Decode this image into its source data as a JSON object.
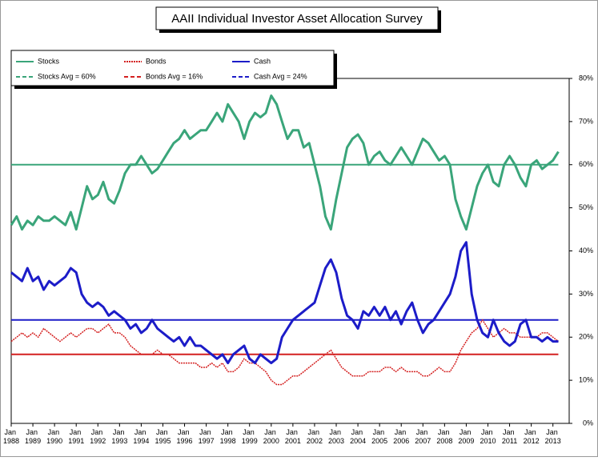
{
  "chart_data": {
    "type": "line",
    "title": "AAII Individual Investor Asset Allocation Survey",
    "x": [
      1988,
      1988.25,
      1988.5,
      1988.75,
      1989,
      1989.25,
      1989.5,
      1989.75,
      1990,
      1990.25,
      1990.5,
      1990.75,
      1991,
      1991.25,
      1991.5,
      1991.75,
      1992,
      1992.25,
      1992.5,
      1992.75,
      1993,
      1993.25,
      1993.5,
      1993.75,
      1994,
      1994.25,
      1994.5,
      1994.75,
      1995,
      1995.25,
      1995.5,
      1995.75,
      1996,
      1996.25,
      1996.5,
      1996.75,
      1997,
      1997.25,
      1997.5,
      1997.75,
      1998,
      1998.25,
      1998.5,
      1998.75,
      1999,
      1999.25,
      1999.5,
      1999.75,
      2000,
      2000.25,
      2000.5,
      2000.75,
      2001,
      2001.25,
      2001.5,
      2001.75,
      2002,
      2002.25,
      2002.5,
      2002.75,
      2003,
      2003.25,
      2003.5,
      2003.75,
      2004,
      2004.25,
      2004.5,
      2004.75,
      2005,
      2005.25,
      2005.5,
      2005.75,
      2006,
      2006.25,
      2006.5,
      2006.75,
      2007,
      2007.25,
      2007.5,
      2007.75,
      2008,
      2008.25,
      2008.5,
      2008.75,
      2009,
      2009.25,
      2009.5,
      2009.75,
      2010,
      2010.25,
      2010.5,
      2010.75,
      2011,
      2011.25,
      2011.5,
      2011.75,
      2012,
      2012.25,
      2012.5,
      2012.75,
      2013,
      2013.25
    ],
    "series": [
      {
        "name": "Stocks",
        "color": "#3aa57a",
        "dash": false,
        "values": [
          46,
          48,
          45,
          47,
          46,
          48,
          47,
          47,
          48,
          47,
          46,
          49,
          45,
          50,
          55,
          52,
          53,
          56,
          52,
          51,
          54,
          58,
          60,
          60,
          62,
          60,
          58,
          59,
          61,
          63,
          65,
          66,
          68,
          66,
          67,
          68,
          68,
          70,
          72,
          70,
          74,
          72,
          70,
          66,
          70,
          72,
          71,
          72,
          76,
          74,
          70,
          66,
          68,
          68,
          64,
          65,
          60,
          55,
          48,
          45,
          52,
          58,
          64,
          66,
          67,
          65,
          60,
          62,
          63,
          61,
          60,
          62,
          64,
          62,
          60,
          63,
          66,
          65,
          63,
          61,
          62,
          60,
          52,
          48,
          45,
          50,
          55,
          58,
          60,
          56,
          55,
          60,
          62,
          60,
          57,
          55,
          60,
          61,
          59,
          60,
          61,
          63
        ]
      },
      {
        "name": "Bonds",
        "color": "#d42020",
        "dash": true,
        "values": [
          19,
          20,
          21,
          20,
          21,
          20,
          22,
          21,
          20,
          19,
          20,
          21,
          20,
          21,
          22,
          22,
          21,
          22,
          23,
          21,
          21,
          20,
          18,
          17,
          16,
          16,
          16,
          17,
          16,
          16,
          15,
          14,
          14,
          14,
          14,
          13,
          13,
          14,
          13,
          14,
          12,
          12,
          13,
          15,
          14,
          14,
          13,
          12,
          10,
          9,
          9,
          10,
          11,
          11,
          12,
          13,
          14,
          15,
          16,
          17,
          15,
          13,
          12,
          11,
          11,
          11,
          12,
          12,
          12,
          13,
          13,
          12,
          13,
          12,
          12,
          12,
          11,
          11,
          12,
          13,
          12,
          12,
          14,
          17,
          19,
          21,
          22,
          24,
          22,
          20,
          21,
          22,
          21,
          21,
          20,
          20,
          20,
          20,
          21,
          21,
          20,
          19
        ]
      },
      {
        "name": "Cash",
        "color": "#1c1cc8",
        "dash": false,
        "values": [
          35,
          34,
          33,
          36,
          33,
          34,
          31,
          33,
          32,
          33,
          34,
          36,
          35,
          30,
          28,
          27,
          28,
          27,
          25,
          26,
          25,
          24,
          22,
          23,
          21,
          22,
          24,
          22,
          21,
          20,
          19,
          20,
          18,
          20,
          18,
          18,
          17,
          16,
          15,
          16,
          14,
          16,
          17,
          18,
          15,
          14,
          16,
          15,
          14,
          15,
          20,
          22,
          24,
          25,
          26,
          27,
          28,
          32,
          36,
          38,
          35,
          29,
          25,
          24,
          22,
          26,
          25,
          27,
          25,
          27,
          24,
          26,
          23,
          26,
          28,
          24,
          21,
          23,
          24,
          26,
          28,
          30,
          34,
          40,
          42,
          30,
          24,
          21,
          20,
          24,
          21,
          19,
          18,
          19,
          23,
          24,
          20,
          20,
          19,
          20,
          19,
          19
        ]
      }
    ],
    "averages": [
      {
        "name": "Stocks Avg = 60%",
        "value": 60,
        "color": "#3aa57a"
      },
      {
        "name": "Bonds Avg = 16%",
        "value": 16,
        "color": "#d42020"
      },
      {
        "name": "Cash Avg = 24%",
        "value": 24,
        "color": "#1c1cc8"
      }
    ],
    "xlim": [
      1988,
      2013.75
    ],
    "xticks": [
      {
        "value": 1988,
        "label": "Jan 1988"
      },
      {
        "value": 1989,
        "label": "Jan 1989"
      },
      {
        "value": 1990,
        "label": "Jan 1990"
      },
      {
        "value": 1991,
        "label": "Jan 1991"
      },
      {
        "value": 1992,
        "label": "Jan 1992"
      },
      {
        "value": 1993,
        "label": "Jan 1993"
      },
      {
        "value": 1994,
        "label": "Jan 1994"
      },
      {
        "value": 1995,
        "label": "Jan 1995"
      },
      {
        "value": 1996,
        "label": "Jan 1996"
      },
      {
        "value": 1997,
        "label": "Jan 1997"
      },
      {
        "value": 1998,
        "label": "Jan 1998"
      },
      {
        "value": 1999,
        "label": "Jan 1999"
      },
      {
        "value": 2000,
        "label": "Jan 2000"
      },
      {
        "value": 2001,
        "label": "Jan 2001"
      },
      {
        "value": 2002,
        "label": "Jan 2002"
      },
      {
        "value": 2003,
        "label": "Jan 2003"
      },
      {
        "value": 2004,
        "label": "Jan 2004"
      },
      {
        "value": 2005,
        "label": "Jan 2005"
      },
      {
        "value": 2006,
        "label": "Jan 2006"
      },
      {
        "value": 2007,
        "label": "Jan 2007"
      },
      {
        "value": 2008,
        "label": "Jan 2008"
      },
      {
        "value": 2009,
        "label": "Jan 2009"
      },
      {
        "value": 2010,
        "label": "Jan 2010"
      },
      {
        "value": 2011,
        "label": "Jan 2011"
      },
      {
        "value": 2012,
        "label": "Jan 2012"
      },
      {
        "value": 2013,
        "label": "Jan 2013"
      }
    ],
    "ylim": [
      0,
      80
    ],
    "yticks": [
      {
        "value": 0,
        "label": "0%"
      },
      {
        "value": 10,
        "label": "10%"
      },
      {
        "value": 20,
        "label": "20%"
      },
      {
        "value": 30,
        "label": "30%"
      },
      {
        "value": 40,
        "label": "40%"
      },
      {
        "value": 50,
        "label": "50%"
      },
      {
        "value": 60,
        "label": "60%"
      },
      {
        "value": 70,
        "label": "70%"
      },
      {
        "value": 80,
        "label": "80%"
      }
    ],
    "grid": false
  }
}
